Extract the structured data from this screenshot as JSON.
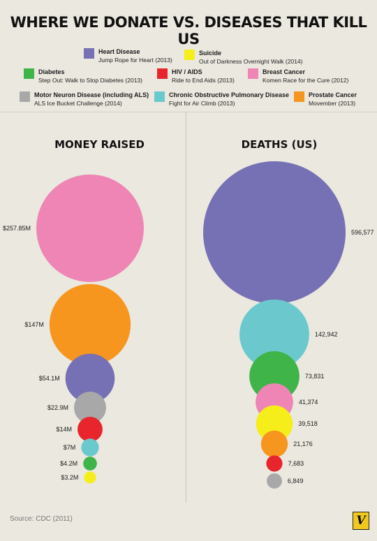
{
  "title": "WHERE WE DONATE VS. DISEASES THAT KILL US",
  "legend": [
    {
      "disease": "Heart Disease",
      "event": "Jump Rope for Heart (2013)",
      "color": "#7670b4"
    },
    {
      "disease": "Suicide",
      "event": "Out of Darkness Overnight Walk (2014)",
      "color": "#f5ee1a"
    },
    {
      "disease": "Diabetes",
      "event": "Step Out: Walk to Stop Diabetes (2013)",
      "color": "#3eb449"
    },
    {
      "disease": "HIV / AIDS",
      "event": "Ride to End Aids (2013)",
      "color": "#e8252c"
    },
    {
      "disease": "Breast Cancer",
      "event": "Komen Race for the Cure (2012)",
      "color": "#ee85b5"
    },
    {
      "disease": "Motor Neuron Disease (including ALS)",
      "event": "ALS Ice Bucket Challenge (2014)",
      "color": "#a8a8a8"
    },
    {
      "disease": "Chronic Obstructive Pulmonary Disease",
      "event": "Fight for Air Climb (2013)",
      "color": "#6bc9ce"
    },
    {
      "disease": "Prostate Cancer",
      "event": "Movember (2013)",
      "color": "#f6961e"
    }
  ],
  "headings": {
    "money": "MONEY RAISED",
    "deaths": "DEATHS (US)"
  },
  "chart_data": [
    {
      "type": "bubble",
      "title": "MONEY RAISED",
      "unit": "USD millions",
      "categories": [
        "Breast Cancer",
        "Prostate Cancer",
        "Heart Disease",
        "Motor Neuron Disease (including ALS)",
        "HIV / AIDS",
        "Chronic Obstructive Pulmonary Disease",
        "Diabetes",
        "Suicide"
      ],
      "values": [
        257.85,
        147,
        54.1,
        22.9,
        14,
        7,
        4.2,
        3.2
      ],
      "labels": [
        "$257.85M",
        "$147M",
        "$54.1M",
        "$22.9M",
        "$14M",
        "$7M",
        "$4.2M",
        "$3.2M"
      ],
      "colors": [
        "#ee85b5",
        "#f6961e",
        "#7670b4",
        "#a8a8a8",
        "#e8252c",
        "#6bc9ce",
        "#3eb449",
        "#f5ee1a"
      ]
    },
    {
      "type": "bubble",
      "title": "DEATHS (US)",
      "unit": "deaths",
      "categories": [
        "Heart Disease",
        "Chronic Obstructive Pulmonary Disease",
        "Diabetes",
        "Breast Cancer",
        "Suicide",
        "Prostate Cancer",
        "HIV / AIDS",
        "Motor Neuron Disease (including ALS)"
      ],
      "values": [
        596577,
        142942,
        73831,
        41374,
        39518,
        21176,
        7683,
        6849
      ],
      "labels": [
        "596,577",
        "142,942",
        "73,831",
        "41,374",
        "39,518",
        "21,176",
        "7,683",
        "6,849"
      ],
      "colors": [
        "#7670b4",
        "#6bc9ce",
        "#3eb449",
        "#ee85b5",
        "#f5ee1a",
        "#f6961e",
        "#e8252c",
        "#a8a8a8"
      ]
    }
  ],
  "source": "Source: CDC (2011)",
  "logo": "V"
}
